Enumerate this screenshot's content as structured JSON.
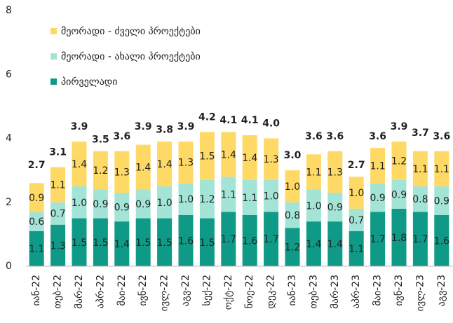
{
  "chart_data": {
    "type": "stacked_bar",
    "categories": [
      "იან-22",
      "თებ-22",
      "მარ-22",
      "აპრ-22",
      "მაი-22",
      "ივნ-22",
      "ივლ-22",
      "აგვ-22",
      "სექ-22",
      "ოქტ-22",
      "ნოე-22",
      "დეკ-22",
      "იან-23",
      "თებ-23",
      "მარ-23",
      "აპრ-23",
      "მაი-23",
      "ივნ-23",
      "ივლ-23",
      "აგვ-23"
    ],
    "series": [
      {
        "name": "პირველადი",
        "color": "#0e9a86",
        "values": [
          1.1,
          1.3,
          1.5,
          1.5,
          1.4,
          1.5,
          1.5,
          1.6,
          1.5,
          1.7,
          1.6,
          1.7,
          1.2,
          1.4,
          1.4,
          1.1,
          1.7,
          1.8,
          1.7,
          1.6
        ],
        "value_labels": [
          "1.1",
          "1.3",
          "1.5",
          "1.5",
          "1.4",
          "1.5",
          "1.5",
          "1.6",
          "1.5",
          "1.7",
          "1.6",
          "1.7",
          "1.2",
          "1.4",
          "1.4",
          "1.1",
          "1.7",
          "1.8",
          "1.7",
          "1.6"
        ]
      },
      {
        "name": "მეორადი - ახალი პროექტები",
        "color": "#a3e4d7",
        "values": [
          0.6,
          0.7,
          1.0,
          0.9,
          0.9,
          0.9,
          1.0,
          1.0,
          1.2,
          1.1,
          1.1,
          1.0,
          0.8,
          1.0,
          0.9,
          0.7,
          0.9,
          0.9,
          0.8,
          0.9
        ],
        "value_labels": [
          "0.6",
          "0.7",
          "1.0",
          "0.9",
          "0.9",
          "0.9",
          "1.0",
          "1.0",
          "1.2",
          "1.1",
          "1.1",
          "1.0",
          "0.8",
          "1.0",
          "0.9",
          "0.7",
          "0.9",
          "0.9",
          "0.8",
          "0.9"
        ]
      },
      {
        "name": "მეორადი - ძველი პროექტები",
        "color": "#ffd966",
        "values": [
          0.9,
          1.1,
          1.4,
          1.2,
          1.3,
          1.4,
          1.4,
          1.3,
          1.5,
          1.4,
          1.4,
          1.3,
          1.0,
          1.1,
          1.3,
          1.0,
          1.1,
          1.2,
          1.1,
          1.1
        ],
        "value_labels": [
          "0.9",
          "1.1",
          "1.4",
          "1.2",
          "1.3",
          "1.4",
          "1.4",
          "1.3",
          "1.5",
          "1.4",
          "1.4",
          "1.3",
          "1.0",
          "1.1",
          "1.3",
          "1.0",
          "1.1",
          "1.2",
          "1.1",
          "1.1"
        ]
      }
    ],
    "totals": [
      2.7,
      3.1,
      3.9,
      3.5,
      3.6,
      3.9,
      3.8,
      3.9,
      4.2,
      4.1,
      4.1,
      4.0,
      3.0,
      3.6,
      3.6,
      2.7,
      3.6,
      3.9,
      3.7,
      3.6
    ],
    "total_labels": [
      "2.7",
      "3.1",
      "3.9",
      "3.5",
      "3.6",
      "3.9",
      "3.8",
      "3.9",
      "4.2",
      "4.1",
      "4.1",
      "4.0",
      "3.0",
      "3.6",
      "3.6",
      "2.7",
      "3.6",
      "3.9",
      "3.7",
      "3.6"
    ],
    "ylim": [
      0,
      8
    ],
    "yticks": [
      0,
      2,
      4,
      6,
      8
    ],
    "grid": false,
    "legend": "top-left"
  }
}
